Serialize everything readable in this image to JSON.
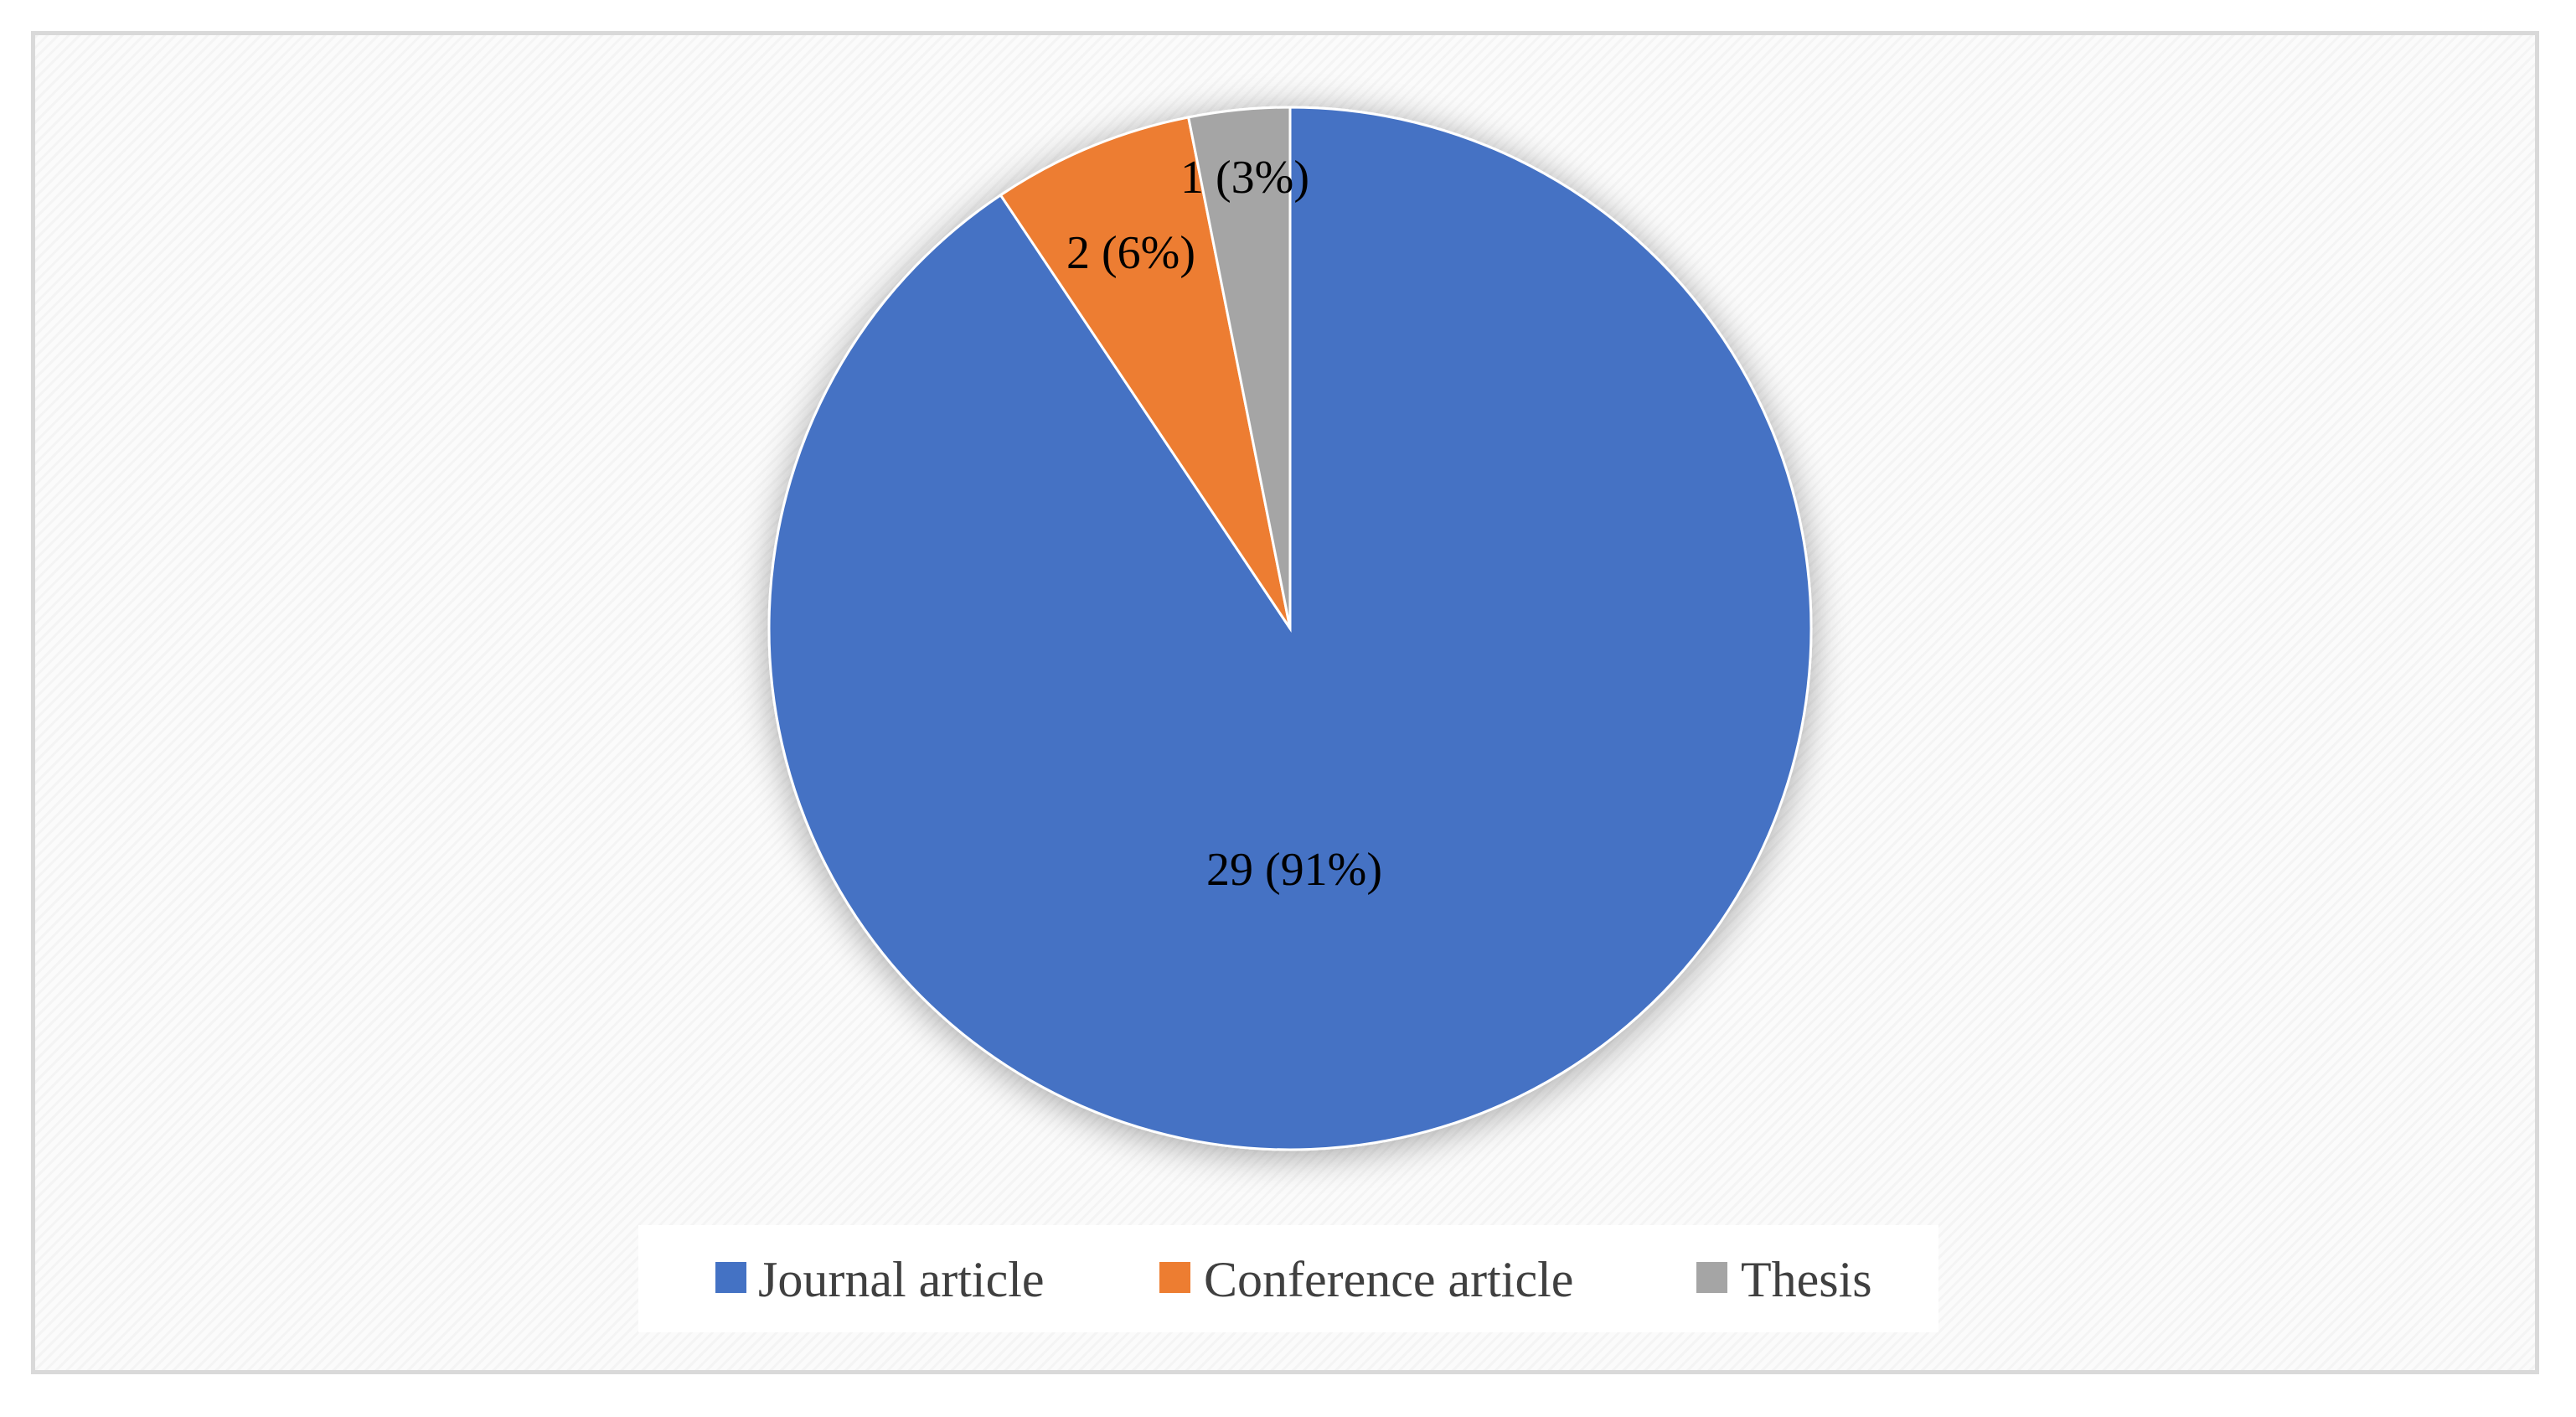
{
  "chart_data": {
    "type": "pie",
    "title": "",
    "categories": [
      "Journal article",
      "Conference article",
      "Thesis"
    ],
    "values": [
      29,
      2,
      1
    ],
    "percent_labels": [
      "29 (91%)",
      "2 (6%)",
      "1 (3%)"
    ],
    "colors": [
      "#4472c4",
      "#ed7d31",
      "#a5a5a5"
    ],
    "start_angle": "12 o'clock",
    "direction": "clockwise",
    "legend_position": "bottom"
  }
}
